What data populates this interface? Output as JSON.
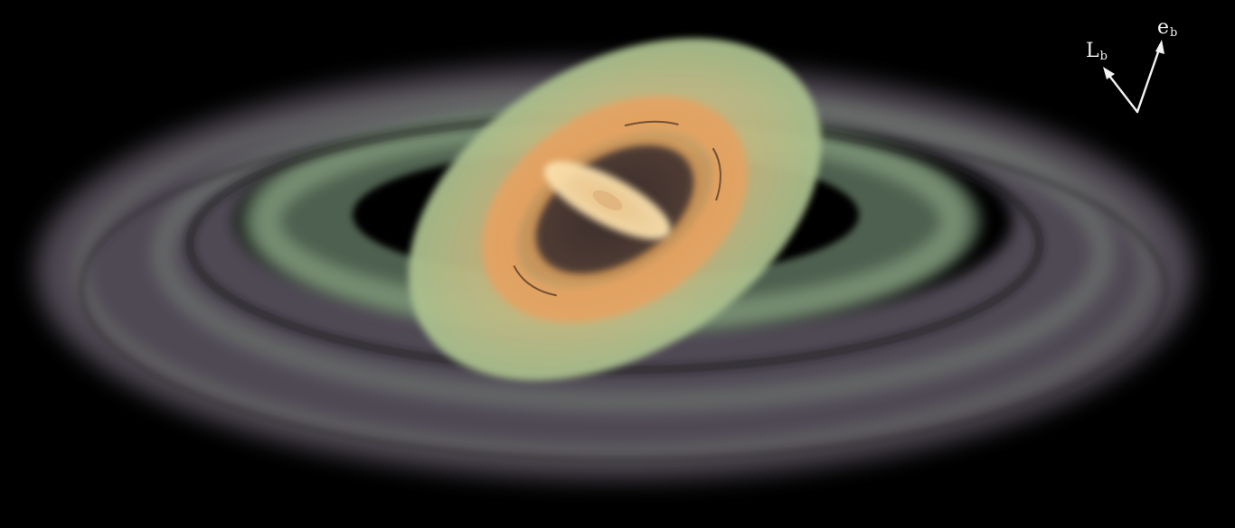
{
  "figure": {
    "description_free": true,
    "vectors": [
      {
        "id": "L",
        "main": "L",
        "sub": "b"
      },
      {
        "id": "e",
        "main": "e",
        "sub": "b"
      }
    ]
  },
  "colors": {
    "background": "#000000",
    "outer_disk": "#6f6670",
    "outer_disk_highlight": "#8a9a86",
    "middle_ring": "#8fb28f",
    "tilted_disk": "#b8c88f",
    "inner_ring": "#e6a86a",
    "core_disk": "#f7d8a0",
    "arrows": "#f2f2f2"
  }
}
